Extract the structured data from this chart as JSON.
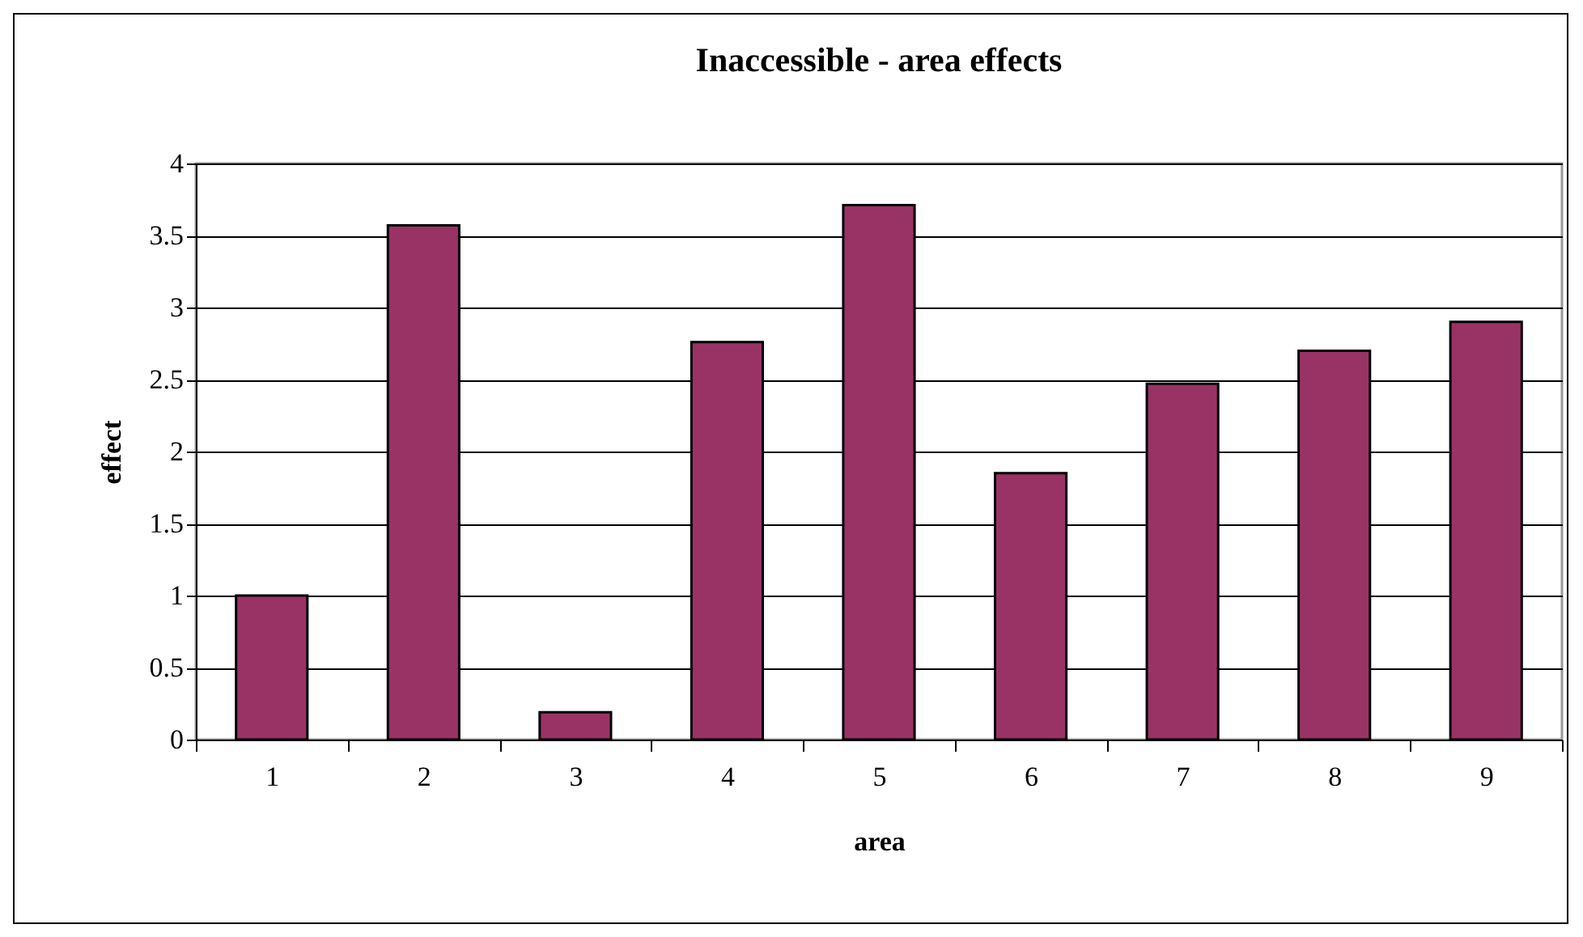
{
  "chart_data": {
    "type": "bar",
    "title": "Inaccessible - area effects",
    "xlabel": "area",
    "ylabel": "effect",
    "categories": [
      "1",
      "2",
      "3",
      "4",
      "5",
      "6",
      "7",
      "8",
      "9"
    ],
    "values": [
      1.0,
      3.57,
      0.19,
      2.76,
      3.71,
      1.85,
      2.47,
      2.7,
      2.9
    ],
    "color": "#993366",
    "ylim": [
      0,
      4
    ],
    "yticks": [
      0,
      0.5,
      1,
      1.5,
      2,
      2.5,
      3,
      3.5,
      4
    ],
    "grid": "y"
  }
}
